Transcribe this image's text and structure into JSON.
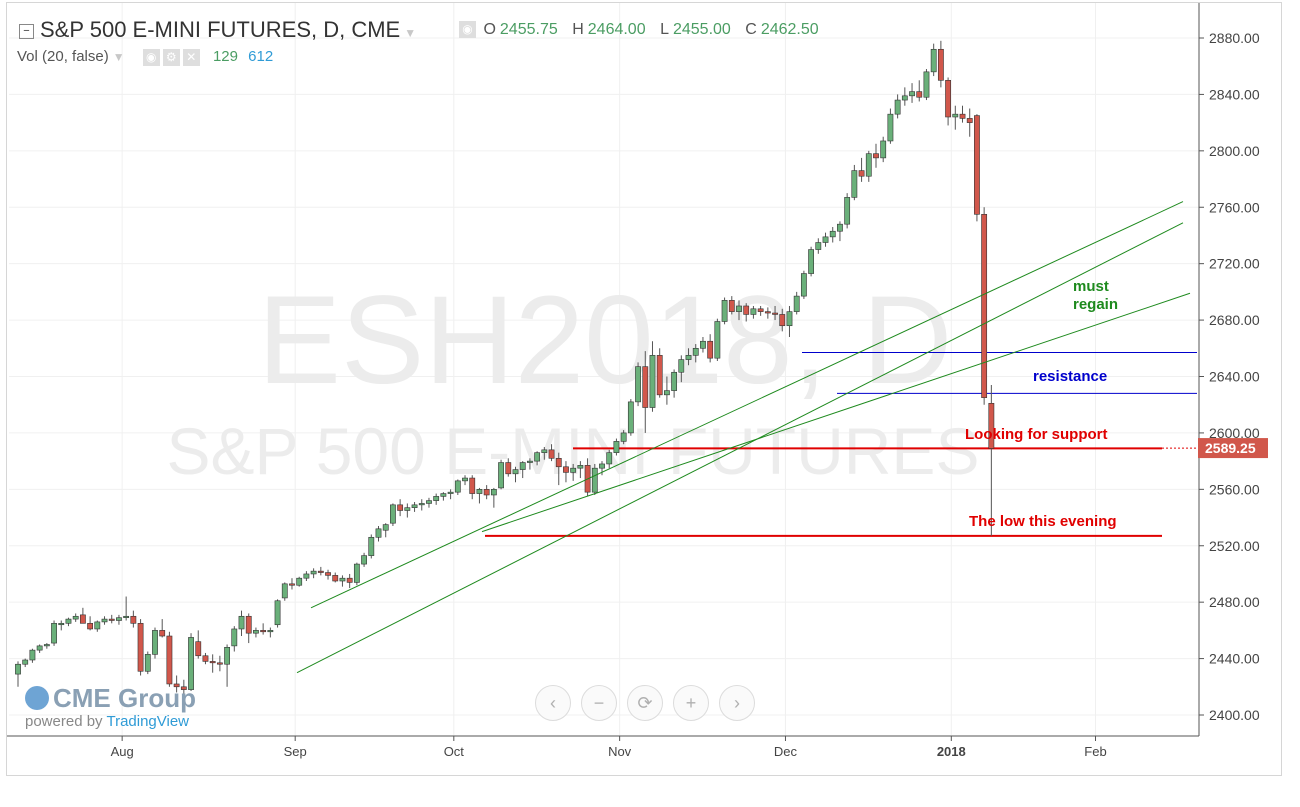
{
  "header": {
    "symbol_title": "S&P 500 E-MINI FUTURES, D, CME",
    "ohlc": {
      "o_label": "O",
      "o": "2455.75",
      "h_label": "H",
      "h": "2464.00",
      "l_label": "L",
      "l": "2455.00",
      "c_label": "C",
      "c": "2462.50"
    },
    "volume_label": "Vol (20, false)",
    "volume_values": [
      "129",
      "612"
    ]
  },
  "watermark": {
    "line1": "ESH2018, D",
    "line2": "S&P 500 E-MINI FUTURES"
  },
  "branding": {
    "logo": "CME Group",
    "powered_prefix": "powered by",
    "powered_brand": "TradingView"
  },
  "zoom_controls": [
    "‹",
    "−",
    "⟳",
    "+",
    "›"
  ],
  "colors": {
    "up": "#6ab07a",
    "down": "#d1574b",
    "channel": "#1e8a1e",
    "resistance": "#0000cc",
    "support": "#e00000",
    "price_tag": "#d1574b"
  },
  "chart_data": {
    "type": "candlestick",
    "ylim": [
      2390,
      2895
    ],
    "y_ticks": [
      "2880.00",
      "2840.00",
      "2800.00",
      "2760.00",
      "2720.00",
      "2680.00",
      "2640.00",
      "2600.00",
      "2560.00",
      "2520.00",
      "2480.00",
      "2440.00",
      "2400.00"
    ],
    "x_ticks": [
      "Aug",
      "Sep",
      "Oct",
      "Nov",
      "Dec",
      "2018",
      "Feb"
    ],
    "last_price": "2589.25",
    "annotations": [
      {
        "text": "must",
        "color": "#1e8a1e"
      },
      {
        "text": "regain",
        "color": "#1e8a1e"
      },
      {
        "text": "resistance",
        "color": "#0000cc"
      },
      {
        "text": "Looking for support",
        "color": "#e00000"
      },
      {
        "text": "The low this evening",
        "color": "#e00000"
      }
    ],
    "horizontal_levels": [
      {
        "label": "resistance upper",
        "value": 2657
      },
      {
        "label": "resistance lower",
        "value": 2628
      },
      {
        "label": "support",
        "value": 2589
      },
      {
        "label": "low this evening",
        "value": 2527
      }
    ],
    "channel_lines": [
      {
        "from": [
          0,
          2476
        ],
        "to": [
          143,
          2764
        ]
      },
      {
        "from": [
          0,
          2430
        ],
        "to": [
          143,
          2749
        ]
      },
      {
        "from": [
          16,
          2530
        ],
        "to": [
          149,
          2699
        ]
      }
    ],
    "candles": [
      [
        2429,
        2438,
        2420,
        2436
      ],
      [
        2436,
        2440,
        2434,
        2439
      ],
      [
        2439,
        2447,
        2437,
        2446
      ],
      [
        2446,
        2450,
        2444,
        2449
      ],
      [
        2449,
        2451,
        2447,
        2450
      ],
      [
        2451,
        2467,
        2449,
        2465
      ],
      [
        2464,
        2467,
        2460,
        2465
      ],
      [
        2465,
        2469,
        2463,
        2468
      ],
      [
        2468,
        2472,
        2466,
        2470
      ],
      [
        2471,
        2476,
        2468,
        2465
      ],
      [
        2465,
        2470,
        2460,
        2461
      ],
      [
        2461,
        2467,
        2459,
        2466
      ],
      [
        2466,
        2470,
        2464,
        2468
      ],
      [
        2468,
        2471,
        2465,
        2467
      ],
      [
        2467,
        2471,
        2464,
        2469
      ],
      [
        2469,
        2484,
        2467,
        2470
      ],
      [
        2470,
        2474,
        2462,
        2465
      ],
      [
        2465,
        2468,
        2428,
        2431
      ],
      [
        2431,
        2445,
        2429,
        2443
      ],
      [
        2443,
        2462,
        2440,
        2460
      ],
      [
        2460,
        2468,
        2455,
        2456
      ],
      [
        2456,
        2459,
        2420,
        2422
      ],
      [
        2422,
        2428,
        2416,
        2420
      ],
      [
        2420,
        2425,
        2415,
        2418
      ],
      [
        2418,
        2458,
        2417,
        2455
      ],
      [
        2452,
        2460,
        2440,
        2442
      ],
      [
        2442,
        2444,
        2436,
        2438
      ],
      [
        2438,
        2443,
        2430,
        2437
      ],
      [
        2437,
        2442,
        2431,
        2436
      ],
      [
        2436,
        2450,
        2420,
        2448
      ],
      [
        2449,
        2463,
        2445,
        2461
      ],
      [
        2461,
        2474,
        2456,
        2470
      ],
      [
        2470,
        2472,
        2451,
        2458
      ],
      [
        2458,
        2462,
        2455,
        2460
      ],
      [
        2460,
        2465,
        2457,
        2459
      ],
      [
        2459,
        2462,
        2455,
        2460
      ],
      [
        2464,
        2482,
        2462,
        2481
      ],
      [
        2483,
        2494,
        2481,
        2493
      ],
      [
        2493,
        2497,
        2489,
        2492
      ],
      [
        2492,
        2498,
        2491,
        2497
      ],
      [
        2497,
        2502,
        2495,
        2500
      ],
      [
        2500,
        2504,
        2497,
        2502
      ],
      [
        2502,
        2505,
        2499,
        2501
      ],
      [
        2501,
        2503,
        2496,
        2499
      ],
      [
        2499,
        2501,
        2494,
        2495
      ],
      [
        2495,
        2499,
        2491,
        2497
      ],
      [
        2497,
        2500,
        2490,
        2494
      ],
      [
        2494,
        2508,
        2492,
        2507
      ],
      [
        2507,
        2515,
        2505,
        2513
      ],
      [
        2513,
        2528,
        2511,
        2526
      ],
      [
        2526,
        2534,
        2523,
        2532
      ],
      [
        2531,
        2536,
        2526,
        2535
      ],
      [
        2536,
        2550,
        2534,
        2549
      ],
      [
        2549,
        2553,
        2541,
        2545
      ],
      [
        2545,
        2550,
        2540,
        2547
      ],
      [
        2547,
        2551,
        2544,
        2549
      ],
      [
        2549,
        2553,
        2545,
        2550
      ],
      [
        2550,
        2554,
        2547,
        2552
      ],
      [
        2552,
        2557,
        2549,
        2555
      ],
      [
        2555,
        2558,
        2552,
        2557
      ],
      [
        2557,
        2560,
        2553,
        2558
      ],
      [
        2558,
        2567,
        2556,
        2566
      ],
      [
        2566,
        2570,
        2563,
        2568
      ],
      [
        2568,
        2570,
        2553,
        2557
      ],
      [
        2557,
        2561,
        2550,
        2560
      ],
      [
        2560,
        2563,
        2553,
        2556
      ],
      [
        2556,
        2561,
        2547,
        2560
      ],
      [
        2561,
        2581,
        2560,
        2579
      ],
      [
        2579,
        2582,
        2569,
        2571
      ],
      [
        2571,
        2576,
        2565,
        2574
      ],
      [
        2574,
        2580,
        2568,
        2579
      ],
      [
        2579,
        2582,
        2574,
        2580
      ],
      [
        2580,
        2587,
        2577,
        2586
      ],
      [
        2586,
        2590,
        2581,
        2588
      ],
      [
        2588,
        2592,
        2580,
        2582
      ],
      [
        2582,
        2586,
        2563,
        2576
      ],
      [
        2576,
        2580,
        2565,
        2572
      ],
      [
        2572,
        2578,
        2566,
        2575
      ],
      [
        2575,
        2580,
        2568,
        2577
      ],
      [
        2577,
        2582,
        2555,
        2558
      ],
      [
        2558,
        2578,
        2556,
        2575
      ],
      [
        2575,
        2580,
        2570,
        2578
      ],
      [
        2578,
        2588,
        2575,
        2586
      ],
      [
        2586,
        2596,
        2584,
        2594
      ],
      [
        2594,
        2602,
        2592,
        2600
      ],
      [
        2600,
        2624,
        2598,
        2622
      ],
      [
        2622,
        2650,
        2619,
        2647
      ],
      [
        2647,
        2658,
        2600,
        2618
      ],
      [
        2618,
        2665,
        2615,
        2655
      ],
      [
        2655,
        2660,
        2625,
        2627
      ],
      [
        2627,
        2640,
        2620,
        2630
      ],
      [
        2630,
        2645,
        2625,
        2643
      ],
      [
        2643,
        2655,
        2636,
        2652
      ],
      [
        2652,
        2660,
        2648,
        2655
      ],
      [
        2655,
        2663,
        2650,
        2660
      ],
      [
        2660,
        2668,
        2657,
        2665
      ],
      [
        2665,
        2670,
        2650,
        2653
      ],
      [
        2653,
        2681,
        2651,
        2679
      ],
      [
        2679,
        2696,
        2677,
        2694
      ],
      [
        2694,
        2697,
        2684,
        2686
      ],
      [
        2686,
        2694,
        2680,
        2690
      ],
      [
        2690,
        2692,
        2679,
        2684
      ],
      [
        2684,
        2690,
        2681,
        2688
      ],
      [
        2688,
        2690,
        2683,
        2686
      ],
      [
        2686,
        2689,
        2681,
        2685
      ],
      [
        2685,
        2690,
        2680,
        2684
      ],
      [
        2684,
        2688,
        2672,
        2676
      ],
      [
        2676,
        2690,
        2668,
        2686
      ],
      [
        2686,
        2700,
        2684,
        2697
      ],
      [
        2697,
        2715,
        2695,
        2713
      ],
      [
        2713,
        2732,
        2711,
        2730
      ],
      [
        2730,
        2738,
        2727,
        2735
      ],
      [
        2735,
        2742,
        2732,
        2739
      ],
      [
        2739,
        2746,
        2735,
        2743
      ],
      [
        2743,
        2750,
        2736,
        2748
      ],
      [
        2748,
        2770,
        2745,
        2767
      ],
      [
        2767,
        2790,
        2765,
        2786
      ],
      [
        2786,
        2795,
        2778,
        2782
      ],
      [
        2782,
        2800,
        2778,
        2798
      ],
      [
        2798,
        2805,
        2788,
        2795
      ],
      [
        2795,
        2810,
        2792,
        2807
      ],
      [
        2807,
        2830,
        2805,
        2826
      ],
      [
        2826,
        2840,
        2823,
        2836
      ],
      [
        2836,
        2845,
        2832,
        2839
      ],
      [
        2839,
        2848,
        2834,
        2842
      ],
      [
        2842,
        2850,
        2835,
        2838
      ],
      [
        2838,
        2858,
        2836,
        2856
      ],
      [
        2856,
        2876,
        2853,
        2872
      ],
      [
        2872,
        2878,
        2845,
        2850
      ],
      [
        2850,
        2852,
        2818,
        2824
      ],
      [
        2824,
        2832,
        2815,
        2826
      ],
      [
        2826,
        2832,
        2820,
        2823
      ],
      [
        2823,
        2830,
        2810,
        2820
      ],
      [
        2825,
        2826,
        2750,
        2755
      ],
      [
        2755,
        2760,
        2620,
        2625
      ],
      [
        2621,
        2634,
        2527,
        2589
      ]
    ]
  }
}
